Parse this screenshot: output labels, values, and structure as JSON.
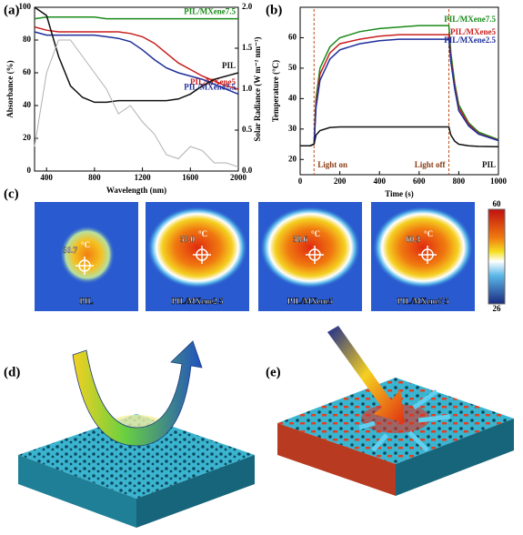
{
  "panel_labels": [
    "(a)",
    "(b)",
    "(c)",
    "(d)",
    "(e)"
  ],
  "chart_data": [
    {
      "type": "line",
      "xlabel": "Wavelength (nm)",
      "ylabel": "Absorbance (%)",
      "y2label": "Solar Radiance (W m⁻² nm⁻¹)",
      "x": [
        300,
        400,
        500,
        600,
        700,
        800,
        900,
        1000,
        1100,
        1200,
        1300,
        1400,
        1500,
        1600,
        1700,
        1800,
        1900,
        2000
      ],
      "xlim": [
        300,
        2000
      ],
      "xticks": [
        400,
        800,
        1200,
        1600,
        2000
      ],
      "ylim": [
        0,
        100
      ],
      "yticks": [
        0,
        20,
        40,
        60,
        80,
        100
      ],
      "y2lim": [
        0,
        2
      ],
      "y2ticks": [
        {
          "value": 0,
          "label": "0.0"
        },
        {
          "value": 0.5,
          "label": "0.5"
        },
        {
          "value": 1,
          "label": "1.0"
        },
        {
          "value": 1.5,
          "label": "1.5"
        },
        {
          "value": 2,
          "label": "2.0"
        }
      ],
      "series": [
        {
          "name": "PIL/MXene7.5",
          "color": "#1a8a1a",
          "values": [
            93,
            94,
            94,
            94,
            94,
            94,
            93,
            93,
            93,
            93,
            93,
            93,
            93,
            93,
            93,
            93,
            93,
            93
          ]
        },
        {
          "name": "PIL/MXene5",
          "color": "#c81e1e",
          "values": [
            88,
            86,
            85,
            85,
            85,
            85,
            85,
            85,
            84,
            82,
            78,
            72,
            66,
            62,
            58,
            55,
            52,
            50
          ]
        },
        {
          "name": "PIL/MXene2.5",
          "color": "#1e2e9a",
          "values": [
            85,
            83,
            83,
            83,
            83,
            83,
            82,
            81,
            79,
            74,
            68,
            63,
            60,
            58,
            56,
            53,
            50,
            47
          ]
        },
        {
          "name": "PIL",
          "color": "#111111",
          "values": [
            100,
            95,
            70,
            52,
            45,
            42,
            42,
            43,
            43,
            43,
            43,
            43,
            44,
            47,
            52,
            56,
            58,
            60
          ]
        },
        {
          "color": "#b0b0b0",
          "axis": "y2",
          "values": [
            0.3,
            1.2,
            1.6,
            1.6,
            1.4,
            1.2,
            1.0,
            0.7,
            0.8,
            0.6,
            0.45,
            0.2,
            0.15,
            0.3,
            0.25,
            0.1,
            0.1,
            0.05
          ]
        }
      ]
    },
    {
      "type": "line",
      "xlabel": "Time (s)",
      "ylabel": "Temperature (°C)",
      "x": [
        0,
        50,
        70,
        80,
        100,
        150,
        200,
        300,
        400,
        500,
        600,
        700,
        750,
        760,
        780,
        800,
        850,
        900,
        1000
      ],
      "xlim": [
        0,
        1000
      ],
      "xticks": [
        0,
        200,
        400,
        600,
        800,
        1000
      ],
      "ylim": [
        15,
        70
      ],
      "yticks": [
        20,
        30,
        40,
        50,
        60
      ],
      "annotations": [
        {
          "text": "Light on",
          "x": 70
        },
        {
          "text": "Light off",
          "x": 750
        }
      ],
      "series": [
        {
          "name": "PIL/MXene7.5",
          "color": "#1a8a1a",
          "values": [
            24.5,
            24.5,
            25,
            40,
            50,
            57,
            60,
            62,
            63,
            63.5,
            64,
            64,
            64,
            55,
            45,
            38,
            32,
            29,
            26.5
          ]
        },
        {
          "name": "PIL/MXene5",
          "color": "#c81e1e",
          "values": [
            24.5,
            24.5,
            25,
            38,
            48,
            55,
            58,
            59.5,
            60.5,
            61,
            61,
            61,
            61,
            53,
            44,
            37,
            31.5,
            28.5,
            26.3
          ]
        },
        {
          "name": "PIL/MXene2.5",
          "color": "#1e2e9a",
          "values": [
            24.5,
            24.5,
            25,
            37,
            46,
            53,
            56,
            58,
            59,
            59.5,
            59.5,
            59.5,
            59.5,
            52,
            43,
            36,
            31,
            28.3,
            26.2
          ]
        },
        {
          "name": "PIL",
          "color": "#111111",
          "values": [
            24.5,
            24.5,
            25,
            28,
            29.5,
            30.5,
            30.7,
            30.7,
            30.7,
            30.7,
            30.7,
            30.7,
            30.7,
            28,
            26,
            25,
            24.5,
            24.3,
            24.2
          ]
        }
      ]
    }
  ],
  "thermal": {
    "unit": "°C",
    "colorbar": [
      "60",
      "26"
    ],
    "images": [
      {
        "caption": "PIL",
        "reading": "30.7"
      },
      {
        "caption": "PIL/MXene2.5",
        "reading": "57.0"
      },
      {
        "caption": "PIL/MXene5",
        "reading": "58.6"
      },
      {
        "caption": "PIL/MXene7.5",
        "reading": "60.3"
      }
    ]
  }
}
